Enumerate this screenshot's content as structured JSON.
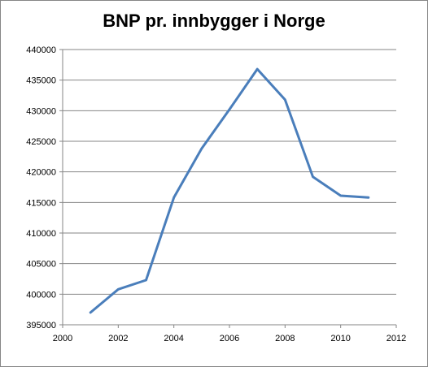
{
  "chart_data": {
    "type": "line",
    "title": "BNP pr. innbygger i Norge",
    "xlabel": "",
    "ylabel": "",
    "xlim": [
      2000,
      2012
    ],
    "ylim": [
      395000,
      440000
    ],
    "x_ticks": [
      2000,
      2002,
      2004,
      2006,
      2008,
      2010,
      2012
    ],
    "y_ticks": [
      395000,
      400000,
      405000,
      410000,
      415000,
      420000,
      425000,
      430000,
      435000,
      440000
    ],
    "grid": "horizontal",
    "legend": "none",
    "series": [
      {
        "color": "#4a7ebb",
        "x": [
          2001,
          2002,
          2003,
          2004,
          2005,
          2006,
          2007,
          2008,
          2009,
          2010,
          2011
        ],
        "y": [
          397000,
          400800,
          402300,
          415800,
          423800,
          430200,
          436800,
          431800,
          419200,
          416100,
          415800
        ]
      }
    ]
  }
}
